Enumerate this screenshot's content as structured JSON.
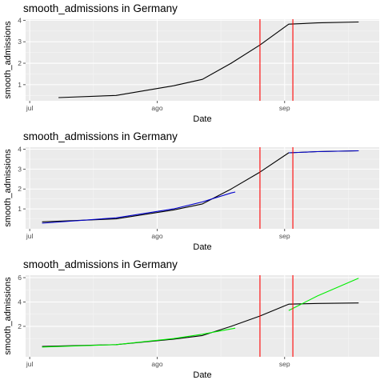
{
  "chart_data": [
    {
      "type": "line",
      "title": "smooth_admissions in Germany",
      "xlabel": "Date",
      "ylabel": "smooth_admissions",
      "x_ticks": [
        "jul",
        "ago",
        "sep"
      ],
      "x_range": [
        "2021-06-30",
        "2021-09-24"
      ],
      "ylim": [
        0.25,
        4.05
      ],
      "y_ticks": [
        1,
        2,
        3,
        4
      ],
      "grid": true,
      "series": [
        {
          "color": "#000000",
          "x": [
            "2021-07-08",
            "2021-07-22",
            "2021-08-05",
            "2021-08-12",
            "2021-08-19",
            "2021-08-26",
            "2021-09-02",
            "2021-09-09",
            "2021-09-19"
          ],
          "values": [
            0.4,
            0.5,
            0.95,
            1.25,
            2.0,
            2.85,
            3.82,
            3.88,
            3.92
          ]
        }
      ],
      "vlines": {
        "color": "#ff0000",
        "x": [
          "2021-08-26",
          "2021-09-03"
        ]
      }
    },
    {
      "type": "line",
      "title": "smooth_admissions in Germany",
      "xlabel": "Date",
      "ylabel": "smooth_admissions",
      "x_ticks": [
        "jul",
        "ago",
        "sep"
      ],
      "x_range": [
        "2021-06-30",
        "2021-09-24"
      ],
      "ylim": [
        0.0,
        4.1
      ],
      "y_ticks": [
        1,
        2,
        3,
        4
      ],
      "grid": true,
      "series": [
        {
          "color": "#000000",
          "x": [
            "2021-07-04",
            "2021-07-22",
            "2021-08-05",
            "2021-08-12",
            "2021-08-19",
            "2021-08-26",
            "2021-09-02",
            "2021-09-09",
            "2021-09-19"
          ],
          "values": [
            0.35,
            0.5,
            0.95,
            1.25,
            2.0,
            2.85,
            3.82,
            3.88,
            3.92
          ]
        },
        {
          "color": "#0000cc",
          "x": [
            "2021-07-04",
            "2021-07-22",
            "2021-08-05",
            "2021-08-12",
            "2021-08-19",
            "2021-08-20"
          ],
          "values": [
            0.28,
            0.55,
            1.0,
            1.35,
            1.8,
            1.85
          ]
        },
        {
          "color": "#0000cc",
          "x": [
            "2021-09-02",
            "2021-09-09",
            "2021-09-19"
          ],
          "values": [
            3.82,
            3.88,
            3.92
          ]
        }
      ],
      "vlines": {
        "color": "#ff0000",
        "x": [
          "2021-08-26",
          "2021-09-03"
        ]
      }
    },
    {
      "type": "line",
      "title": "smooth_admissions in Germany",
      "xlabel": "Date",
      "ylabel": "smooth_admissions",
      "x_ticks": [
        "jul",
        "ago",
        "sep"
      ],
      "x_range": [
        "2021-06-30",
        "2021-09-24"
      ],
      "ylim": [
        -0.5,
        6.2
      ],
      "y_ticks": [
        2,
        4,
        6
      ],
      "grid": true,
      "series": [
        {
          "color": "#000000",
          "x": [
            "2021-07-04",
            "2021-07-22",
            "2021-08-05",
            "2021-08-12",
            "2021-08-19",
            "2021-08-26",
            "2021-09-02",
            "2021-09-09",
            "2021-09-19"
          ],
          "values": [
            0.35,
            0.5,
            0.95,
            1.25,
            2.0,
            2.85,
            3.82,
            3.88,
            3.92
          ]
        },
        {
          "color": "#00ee00",
          "x": [
            "2021-07-04",
            "2021-07-22",
            "2021-08-05",
            "2021-08-12",
            "2021-08-20"
          ],
          "values": [
            0.3,
            0.5,
            1.0,
            1.35,
            1.85
          ]
        },
        {
          "color": "#00ee00",
          "x": [
            "2021-09-02",
            "2021-09-09",
            "2021-09-19"
          ],
          "values": [
            3.3,
            4.5,
            5.95
          ]
        }
      ],
      "vlines": {
        "color": "#ff0000",
        "x": [
          "2021-08-26",
          "2021-09-03"
        ]
      }
    }
  ]
}
